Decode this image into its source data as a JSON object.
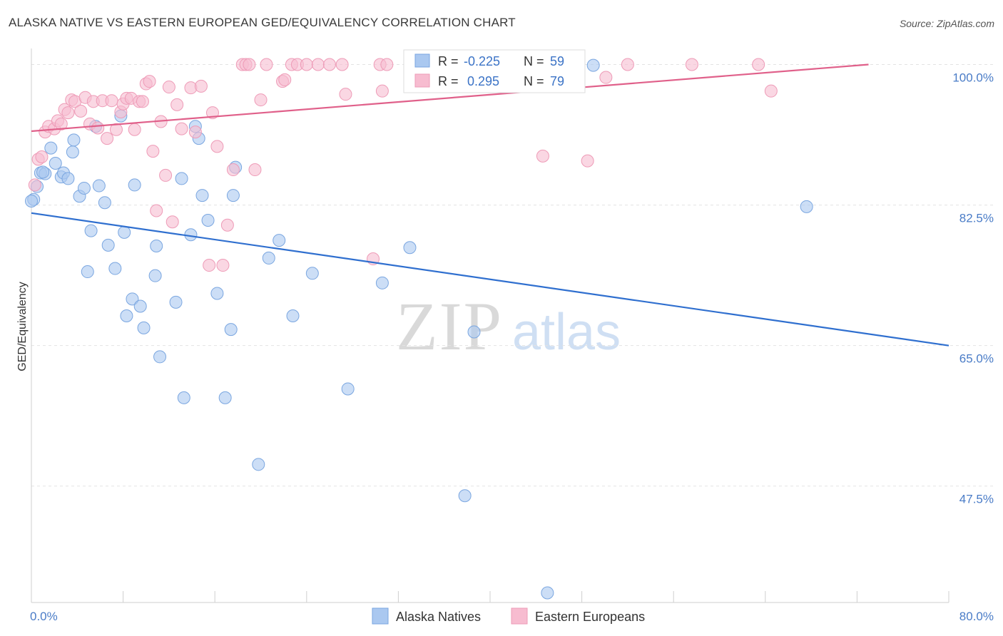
{
  "title": "ALASKA NATIVE VS EASTERN EUROPEAN GED/EQUIVALENCY CORRELATION CHART",
  "source": "Source: ZipAtlas.com",
  "watermark": {
    "zip": "ZIP",
    "atlas": "atlas"
  },
  "colors": {
    "blue_fill": "#aac8f0",
    "blue_stroke": "#7aa6e0",
    "blue_line": "#2f6fcf",
    "pink_fill": "#f7bcd0",
    "pink_stroke": "#ee9bb7",
    "pink_line": "#e0608a",
    "tick_text": "#4a7cc7",
    "grid": "#e3e3e3"
  },
  "legend_box": {
    "rows": [
      {
        "r_label": "R = ",
        "r_value": "-0.225",
        "n_label": "N = ",
        "n_value": "59"
      },
      {
        "r_label": "R = ",
        "r_value": " 0.295",
        "n_label": "N = ",
        "n_value": "79"
      }
    ]
  },
  "chart_data": {
    "type": "scatter",
    "xlabel": "",
    "ylabel": "GED/Equivalency",
    "xlim": [
      0,
      80
    ],
    "ylim": [
      33,
      102
    ],
    "x_tick_labels": [
      {
        "value": 0,
        "label": "0.0%"
      },
      {
        "value": 80,
        "label": "80.0%"
      }
    ],
    "y_tick_labels": [
      {
        "value": 100,
        "label": "100.0%"
      },
      {
        "value": 82.5,
        "label": "82.5%"
      },
      {
        "value": 65,
        "label": "65.0%"
      },
      {
        "value": 47.5,
        "label": "47.5%"
      }
    ],
    "grid": true,
    "legend_position": "bottom",
    "series": [
      {
        "name": "Alaska Natives",
        "trend": {
          "x": [
            0,
            80
          ],
          "y": [
            81.5,
            65.0
          ]
        },
        "points": [
          [
            0.2,
            83.2
          ],
          [
            0.5,
            84.8
          ],
          [
            0.8,
            86.5
          ],
          [
            1.2,
            86.4
          ],
          [
            1.7,
            89.6
          ],
          [
            2.1,
            87.7
          ],
          [
            2.6,
            86.0
          ],
          [
            2.8,
            86.5
          ],
          [
            3.2,
            85.8
          ],
          [
            3.6,
            89.1
          ],
          [
            3.7,
            90.6
          ],
          [
            4.2,
            83.6
          ],
          [
            4.6,
            84.6
          ],
          [
            4.9,
            74.2
          ],
          [
            5.2,
            79.3
          ],
          [
            5.6,
            92.3
          ],
          [
            5.9,
            84.9
          ],
          [
            6.4,
            82.8
          ],
          [
            6.7,
            77.5
          ],
          [
            7.3,
            74.6
          ],
          [
            7.8,
            93.6
          ],
          [
            8.1,
            79.1
          ],
          [
            8.3,
            68.7
          ],
          [
            8.8,
            70.8
          ],
          [
            9.0,
            85.0
          ],
          [
            9.5,
            69.9
          ],
          [
            9.8,
            67.2
          ],
          [
            10.8,
            73.7
          ],
          [
            10.9,
            77.4
          ],
          [
            11.2,
            63.6
          ],
          [
            12.6,
            70.4
          ],
          [
            13.1,
            85.8
          ],
          [
            13.3,
            58.5
          ],
          [
            13.9,
            78.8
          ],
          [
            14.3,
            92.3
          ],
          [
            14.6,
            90.8
          ],
          [
            14.9,
            83.7
          ],
          [
            15.4,
            80.6
          ],
          [
            16.2,
            71.5
          ],
          [
            16.9,
            58.5
          ],
          [
            17.4,
            67.0
          ],
          [
            17.6,
            83.7
          ],
          [
            17.8,
            87.2
          ],
          [
            19.8,
            50.2
          ],
          [
            20.7,
            75.9
          ],
          [
            21.6,
            78.1
          ],
          [
            22.8,
            68.7
          ],
          [
            24.5,
            74.0
          ],
          [
            27.6,
            59.6
          ],
          [
            30.6,
            72.8
          ],
          [
            33.0,
            77.2
          ],
          [
            37.8,
            46.3
          ],
          [
            38.6,
            66.7
          ],
          [
            45.0,
            34.2
          ],
          [
            67.6,
            82.3
          ],
          [
            0.0,
            83.0
          ],
          [
            1.0,
            86.6
          ],
          [
            36.5,
            99.9
          ],
          [
            49.0,
            99.9
          ]
        ]
      },
      {
        "name": "Eastern Europeans",
        "trend": {
          "x": [
            0,
            73
          ],
          "y": [
            91.7,
            100.0
          ]
        },
        "points": [
          [
            0.3,
            85.0
          ],
          [
            0.6,
            88.2
          ],
          [
            0.9,
            88.5
          ],
          [
            1.2,
            91.6
          ],
          [
            1.5,
            92.3
          ],
          [
            2.0,
            92.0
          ],
          [
            2.3,
            93.0
          ],
          [
            2.6,
            92.6
          ],
          [
            2.9,
            94.4
          ],
          [
            3.2,
            94.0
          ],
          [
            3.5,
            95.6
          ],
          [
            3.8,
            95.4
          ],
          [
            4.3,
            94.2
          ],
          [
            4.7,
            95.9
          ],
          [
            5.1,
            92.6
          ],
          [
            5.4,
            95.4
          ],
          [
            5.8,
            92.1
          ],
          [
            6.2,
            95.5
          ],
          [
            6.6,
            90.8
          ],
          [
            7.0,
            95.5
          ],
          [
            7.4,
            91.9
          ],
          [
            7.8,
            94.1
          ],
          [
            8.0,
            95.1
          ],
          [
            8.3,
            95.8
          ],
          [
            8.7,
            95.8
          ],
          [
            9.0,
            91.9
          ],
          [
            9.4,
            95.4
          ],
          [
            9.7,
            95.4
          ],
          [
            10.0,
            97.6
          ],
          [
            10.3,
            97.9
          ],
          [
            10.6,
            89.2
          ],
          [
            10.9,
            81.8
          ],
          [
            11.3,
            92.9
          ],
          [
            11.7,
            86.2
          ],
          [
            12.0,
            97.2
          ],
          [
            12.3,
            80.4
          ],
          [
            12.7,
            95.0
          ],
          [
            13.1,
            92.0
          ],
          [
            13.9,
            97.1
          ],
          [
            14.3,
            91.6
          ],
          [
            14.8,
            97.3
          ],
          [
            15.5,
            75.0
          ],
          [
            15.8,
            94.0
          ],
          [
            16.2,
            89.8
          ],
          [
            16.7,
            75.0
          ],
          [
            17.1,
            80.0
          ],
          [
            17.6,
            86.9
          ],
          [
            18.4,
            100.0
          ],
          [
            18.7,
            100.0
          ],
          [
            19.0,
            100.0
          ],
          [
            19.5,
            86.9
          ],
          [
            20.0,
            95.6
          ],
          [
            20.5,
            100.0
          ],
          [
            21.9,
            97.9
          ],
          [
            22.1,
            98.1
          ],
          [
            22.7,
            100.0
          ],
          [
            23.2,
            100.0
          ],
          [
            24.0,
            100.0
          ],
          [
            25.0,
            100.0
          ],
          [
            26.0,
            100.0
          ],
          [
            27.1,
            100.0
          ],
          [
            27.4,
            96.3
          ],
          [
            30.4,
            100.0
          ],
          [
            30.6,
            96.7
          ],
          [
            31.0,
            100.0
          ],
          [
            33.4,
            100.0
          ],
          [
            34.1,
            100.0
          ],
          [
            36.8,
            100.0
          ],
          [
            37.3,
            100.0
          ],
          [
            39.0,
            100.0
          ],
          [
            41.8,
            100.0
          ],
          [
            44.6,
            88.6
          ],
          [
            48.5,
            88.0
          ],
          [
            50.1,
            98.4
          ],
          [
            52.0,
            100.0
          ],
          [
            57.6,
            100.0
          ],
          [
            63.4,
            100.0
          ],
          [
            64.5,
            96.7
          ],
          [
            29.8,
            75.8
          ]
        ]
      }
    ]
  }
}
